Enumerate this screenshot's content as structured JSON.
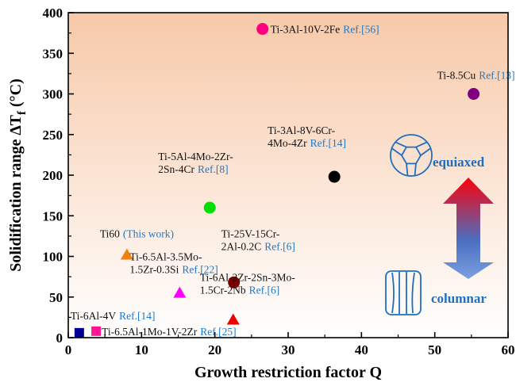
{
  "chart_data": {
    "type": "scatter",
    "title": "",
    "xlabel": "Growth restriction factor Q",
    "ylabel_main": "Solidification  range ∆T",
    "ylabel_sub": "f",
    "ylabel_unit": " (°C)",
    "xlim": [
      0,
      60
    ],
    "ylim": [
      0,
      400
    ],
    "xticks": [
      0,
      10,
      20,
      30,
      40,
      50,
      60
    ],
    "yticks": [
      0,
      50,
      100,
      150,
      200,
      250,
      300,
      350,
      400
    ],
    "grid": false,
    "background_gradient": {
      "top": "#f7c9a9",
      "bottom": "#ffffff"
    },
    "points": [
      {
        "name": "Ti-3Al-10V-2Fe",
        "label_lines": [
          "Ti-3Al-10V-2Fe"
        ],
        "ref": "Ref.[56]",
        "x": 26.5,
        "y": 380,
        "marker": "circle",
        "color": "#ff0080"
      },
      {
        "name": "Ti-8.5Cu",
        "label_lines": [
          "Ti-8.5Cu"
        ],
        "ref": "Ref.[13]",
        "x": 55.3,
        "y": 300,
        "marker": "circle",
        "color": "#800080"
      },
      {
        "name": "Ti-3Al-8V-6Cr-4Mo-4Zr",
        "label_lines": [
          "Ti-3Al-8V-6Cr-",
          "4Mo-4Zr"
        ],
        "ref": "Ref.[14]",
        "x": 36.3,
        "y": 198,
        "marker": "circle",
        "color": "#000000"
      },
      {
        "name": "Ti-5Al-4Mo-2Zr-2Sn-4Cr",
        "label_lines": [
          "Ti-5Al-4Mo-2Zr-",
          "2Sn-4Cr"
        ],
        "ref": "Ref.[8]",
        "x": 19.3,
        "y": 160,
        "marker": "circle",
        "color": "#00e000"
      },
      {
        "name": "Ti60",
        "label_lines": [
          "Ti60"
        ],
        "ref": "(This work)",
        "ref_color": "#ee1111",
        "x": 8.0,
        "y": 102,
        "marker": "triangle",
        "color": "#f08010"
      },
      {
        "name": "Ti-25V-15Cr-2Al-0.2C",
        "label_lines": [
          "Ti-25V-15Cr-",
          "2Al-0.2C"
        ],
        "ref": "Ref.[6]",
        "x": 22.6,
        "y": 68,
        "marker": "circle",
        "color": "#7a0000"
      },
      {
        "name": "Ti-6.5Al-3.5Mo-1.5Zr-0.3Si",
        "label_lines": [
          "Ti-6.5Al-3.5Mo-",
          "1.5Zr-0.3Si"
        ],
        "ref": "Ref.[22]",
        "x": 15.2,
        "y": 55,
        "marker": "triangle",
        "color": "#ff00ff"
      },
      {
        "name": "Ti-6Al-2Zr-2Sn-3Mo-1.5Cr-2Nb",
        "label_lines": [
          "Ti-6Al-2Zr-2Sn-3Mo-",
          "1.5Cr-2Nb"
        ],
        "ref": "Ref.[6]",
        "x": 22.5,
        "y": 22,
        "marker": "triangle",
        "color": "#ee0000"
      },
      {
        "name": "Ti-6Al-4V",
        "label_lines": [
          "Ti-6Al-4V"
        ],
        "ref": "Ref.[14]",
        "x": 1.5,
        "y": 6,
        "marker": "square",
        "color": "#000090"
      },
      {
        "name": "Ti-6.5Al-1Mo-1V-2Zr",
        "label_lines": [
          "Ti-6.5Al-1Mo-1V-2Zr"
        ],
        "ref": "Ref.[25]",
        "x": 3.8,
        "y": 8,
        "marker": "square",
        "color": "#ff1493"
      }
    ],
    "annotations": {
      "equiaxed_label": "equiaxed",
      "columnar_label": "columnar",
      "arrow": {
        "top_color": "#ee0a1a",
        "middle_color": "#4a6fc0",
        "bottom_color": "#7aa0e0"
      },
      "icon_color": "#1f6fc0"
    }
  }
}
